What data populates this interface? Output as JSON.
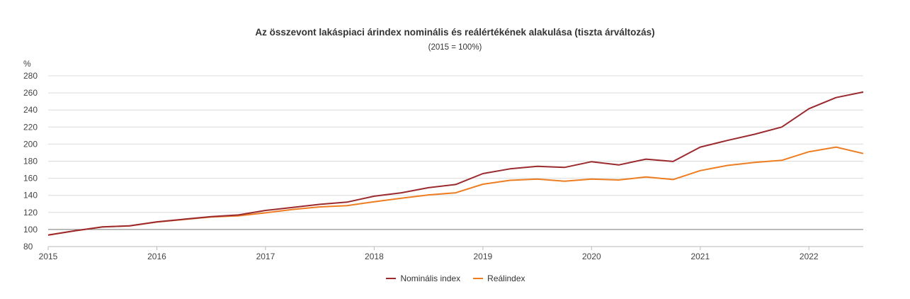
{
  "chart_data": {
    "type": "line",
    "title": "Az összevont lakáspiaci árindex nominális és reálértékének alakulása (tiszta árváltozás)",
    "subtitle": "(2015 = 100%)",
    "ylabel": "%",
    "xlabel": "",
    "ylim": [
      80,
      280
    ],
    "yticks": [
      80,
      100,
      120,
      140,
      160,
      180,
      200,
      220,
      240,
      260,
      280
    ],
    "xlim": [
      2015.0,
      2022.5
    ],
    "xticks": [
      "2015",
      "2016",
      "2017",
      "2018",
      "2019",
      "2020",
      "2021",
      "2022"
    ],
    "reference_line": 100,
    "grid": true,
    "legend_position": "bottom-center",
    "x": [
      "2015 Q1",
      "2015 Q2",
      "2015 Q3",
      "2015 Q4",
      "2016 Q1",
      "2016 Q2",
      "2016 Q3",
      "2016 Q4",
      "2017 Q1",
      "2017 Q2",
      "2017 Q3",
      "2017 Q4",
      "2018 Q1",
      "2018 Q2",
      "2018 Q3",
      "2018 Q4",
      "2019 Q1",
      "2019 Q2",
      "2019 Q3",
      "2019 Q4",
      "2020 Q1",
      "2020 Q2",
      "2020 Q3",
      "2020 Q4",
      "2021 Q1",
      "2021 Q2",
      "2021 Q3",
      "2021 Q4",
      "2022 Q1",
      "2022 Q2",
      "2022 Q3"
    ],
    "series": [
      {
        "name": "Nominális index",
        "color": "#9b2a2f",
        "values": [
          93.5,
          98.6,
          103.0,
          104.3,
          109.0,
          112.0,
          115.0,
          117.0,
          122.3,
          125.8,
          129.5,
          132.0,
          139.0,
          143.0,
          149.0,
          152.7,
          165.5,
          171.0,
          174.0,
          172.7,
          179.4,
          175.6,
          182.4,
          179.7,
          196.5,
          204.3,
          211.5,
          220.0,
          241.5,
          254.5,
          261.0
        ]
      },
      {
        "name": "Reálindex",
        "color": "#ee7d21",
        "values": [
          93.5,
          98.6,
          103.0,
          104.3,
          108.7,
          111.7,
          114.7,
          116.0,
          119.5,
          123.5,
          126.5,
          128.0,
          132.5,
          136.7,
          140.5,
          143.0,
          153.0,
          157.6,
          159.0,
          156.6,
          159.0,
          158.0,
          161.5,
          158.5,
          169.0,
          175.0,
          178.5,
          181.0,
          191.0,
          196.5,
          189.0
        ]
      }
    ]
  },
  "legend": {
    "items": [
      "Nominális index",
      "Reálindex"
    ]
  }
}
